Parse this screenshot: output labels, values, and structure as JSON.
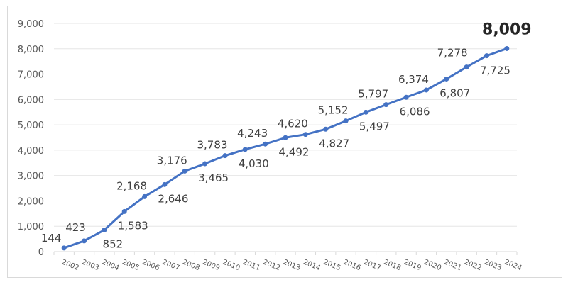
{
  "chart_data": {
    "type": "line",
    "title": "",
    "xlabel": "",
    "ylabel": "",
    "categories": [
      "2002",
      "2003",
      "2004",
      "2005",
      "2006",
      "2007",
      "2008",
      "2009",
      "2010",
      "2011",
      "2012",
      "2013",
      "2014",
      "2015",
      "2016",
      "2017",
      "2018",
      "2019",
      "2020",
      "2021",
      "2022",
      "2023",
      "2024"
    ],
    "values": [
      144,
      423,
      852,
      1583,
      2168,
      2646,
      3176,
      3465,
      3783,
      4030,
      4243,
      4492,
      4620,
      4827,
      5152,
      5497,
      5797,
      6086,
      6374,
      6807,
      7278,
      7725,
      8009
    ],
    "data_labels": [
      "144",
      "423",
      "852",
      "1,583",
      "2,168",
      "2,646",
      "3,176",
      "3,465",
      "3,783",
      "4,030",
      "4,243",
      "4,492",
      "4,620",
      "4,827",
      "5,152",
      "5,497",
      "5,797",
      "6,086",
      "6,374",
      "6,807",
      "7,278",
      "7,725",
      "8,009"
    ],
    "yticks": [
      "0",
      "1,000",
      "2,000",
      "3,000",
      "4,000",
      "5,000",
      "6,000",
      "7,000",
      "8,000",
      "9,000"
    ],
    "ylim": [
      0,
      9000
    ],
    "grid": true,
    "legend": "none",
    "line_color": "#4472C4",
    "highlight_last": true
  }
}
